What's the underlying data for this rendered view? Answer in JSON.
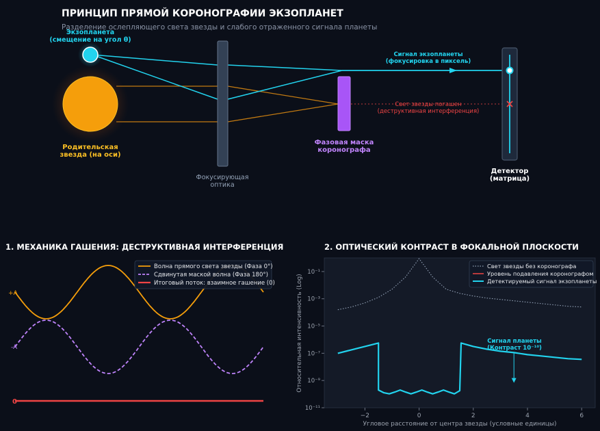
{
  "header": {
    "title": "ПРИНЦИП ПРЯМОЙ КОРОНОГРАФИИ ЭКЗОПЛАНЕТ",
    "subtitle": "Разделение ослепляющего света звезды и слабого отраженного сигнала планеты"
  },
  "diagram": {
    "exoplanet_label_1": "Экзопланета",
    "exoplanet_label_2": "(смещение на угол θ)",
    "star_label_1": "Родительская",
    "star_label_2": "звезда (на оси)",
    "optics_label_1": "Фокусирующая",
    "optics_label_2": "оптика",
    "mask_label_1": "Фазовая маска",
    "mask_label_2": "коронографа",
    "planet_signal_1": "Сигнал экзопланеты",
    "planet_signal_2": "(фокусировка в пиксель)",
    "star_blocked_1": "Свет звезды погашен",
    "star_blocked_2": "(деструктивная интерференция)",
    "detector_label_1": "Детектор",
    "detector_label_2": "(матрица)",
    "colors": {
      "planet": "#22d3ee",
      "star": "#f59e0b",
      "mask": "#a855f7",
      "blocked": "#ef4444"
    }
  },
  "panel1": {
    "title": "1. МЕХАНИКА ГАШЕНИЯ: ДЕСТРУКТИВНАЯ ИНТЕРФЕРЕНЦИЯ",
    "label_plus": "+A",
    "label_minus": "-A",
    "label_zero": "0",
    "legend": [
      {
        "label": "Волна прямого света звезды (Фаза 0°)",
        "color": "#f59e0b",
        "style": "solid"
      },
      {
        "label": "Сдвинутая маской волна (Фаза 180°)",
        "color": "#c084fc",
        "style": "dashed"
      },
      {
        "label": "Итоговый поток: взаимное гашение (0)",
        "color": "#ef4444",
        "style": "solid"
      }
    ]
  },
  "chart_data": {
    "type": "line",
    "title": "2. ОПТИЧЕСКИЙ КОНТРАСТ В ФОКАЛЬНОЙ ПЛОСКОСТИ",
    "xlabel": "Угловое расстояние от центра звезды (условные единицы)",
    "ylabel": "Относительная интенсивность (Log)",
    "xlim": [
      -3.5,
      6.5
    ],
    "ylim_log10": [
      -11,
      0
    ],
    "x_ticks": [
      "−2",
      "0",
      "2",
      "4",
      "6"
    ],
    "x_tick_values": [
      -2,
      0,
      2,
      4,
      6
    ],
    "y_ticks": [
      "10⁻¹",
      "10⁻³",
      "10⁻⁵",
      "10⁻⁷",
      "10⁻⁹",
      "10⁻¹¹"
    ],
    "y_tick_values_log10": [
      -1,
      -3,
      -5,
      -7,
      -9,
      -11
    ],
    "grid": false,
    "legend_position": "top-right",
    "series": [
      {
        "name": "Свет звезды без коронографа",
        "color": "#94a3b8",
        "style": "dotted",
        "x": [
          -3,
          -2.5,
          -2,
          -1.5,
          -1,
          -0.5,
          0,
          0.5,
          1,
          1.5,
          2,
          2.5,
          3,
          3.5,
          4,
          4.5,
          5,
          5.5,
          6
        ],
        "log10_y": [
          -3.8,
          -3.6,
          -3.3,
          -2.9,
          -2.3,
          -1.4,
          -0.05,
          -1.4,
          -2.3,
          -2.6,
          -2.8,
          -2.95,
          -3.05,
          -3.15,
          -3.25,
          -3.35,
          -3.45,
          -3.55,
          -3.6
        ]
      },
      {
        "name": "Уровень подавления коронографом",
        "color": "#ef4444",
        "style": "solid",
        "x": [],
        "log10_y": []
      },
      {
        "name": "Детектируемый сигнал экзопланеты",
        "color": "#22d3ee",
        "style": "solid",
        "x": [
          -3,
          -2.5,
          -2,
          -1.6,
          -1.5,
          -1.5,
          -1.3,
          -1.1,
          -0.9,
          -0.7,
          -0.5,
          -0.3,
          -0.1,
          0.1,
          0.3,
          0.5,
          0.7,
          0.9,
          1.1,
          1.3,
          1.5,
          1.55,
          2,
          2.5,
          3,
          3.5,
          4,
          4.5,
          5,
          5.5,
          6
        ],
        "log10_y": [
          -7.0,
          -6.75,
          -6.5,
          -6.3,
          -6.25,
          -9.7,
          -9.9,
          -9.98,
          -9.85,
          -9.7,
          -9.85,
          -9.98,
          -9.85,
          -9.7,
          -9.85,
          -9.98,
          -9.85,
          -9.7,
          -9.85,
          -9.98,
          -9.75,
          -6.25,
          -6.5,
          -6.7,
          -6.85,
          -6.95,
          -7.1,
          -7.2,
          -7.3,
          -7.4,
          -7.45
        ]
      }
    ],
    "annotation": {
      "text_1": "Сигнал планеты",
      "text_2": "(Контраст 10⁻¹⁰)",
      "x": 3.5,
      "log10_y": -9.1
    }
  }
}
